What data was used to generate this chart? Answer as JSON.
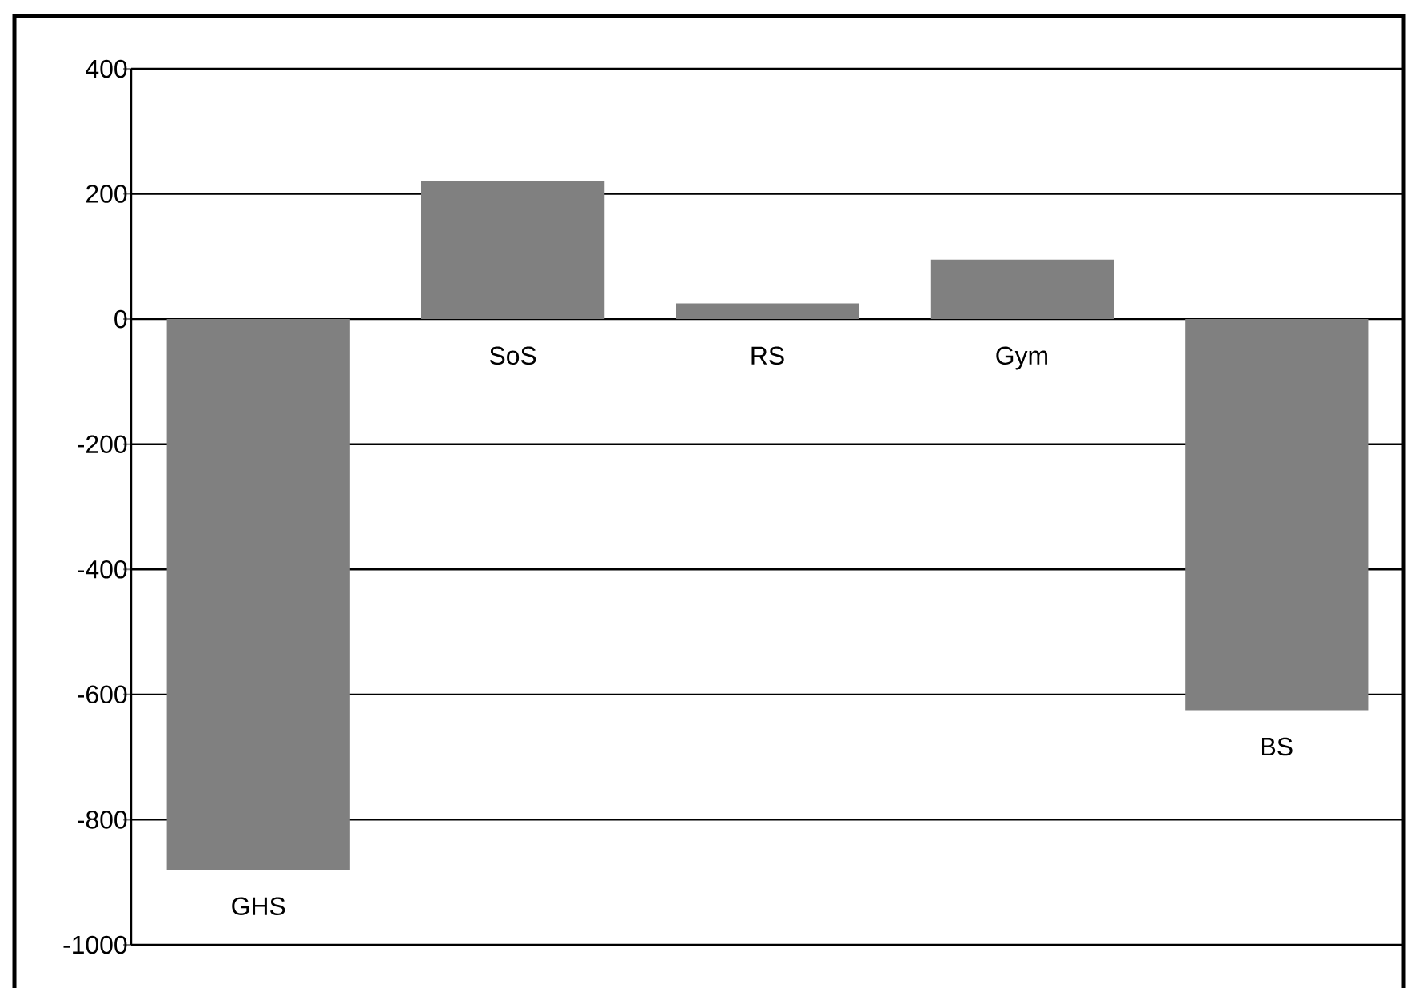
{
  "chart_data": {
    "type": "bar",
    "categories": [
      "GHS",
      "SoS",
      "RS",
      "Gym",
      "BS"
    ],
    "values": [
      -880,
      220,
      25,
      95,
      -625
    ],
    "color": "#808080",
    "ylim": [
      -1000,
      400
    ],
    "yticks": [
      -1000,
      -800,
      -600,
      -400,
      -200,
      0,
      200,
      400
    ],
    "grid": "y"
  }
}
